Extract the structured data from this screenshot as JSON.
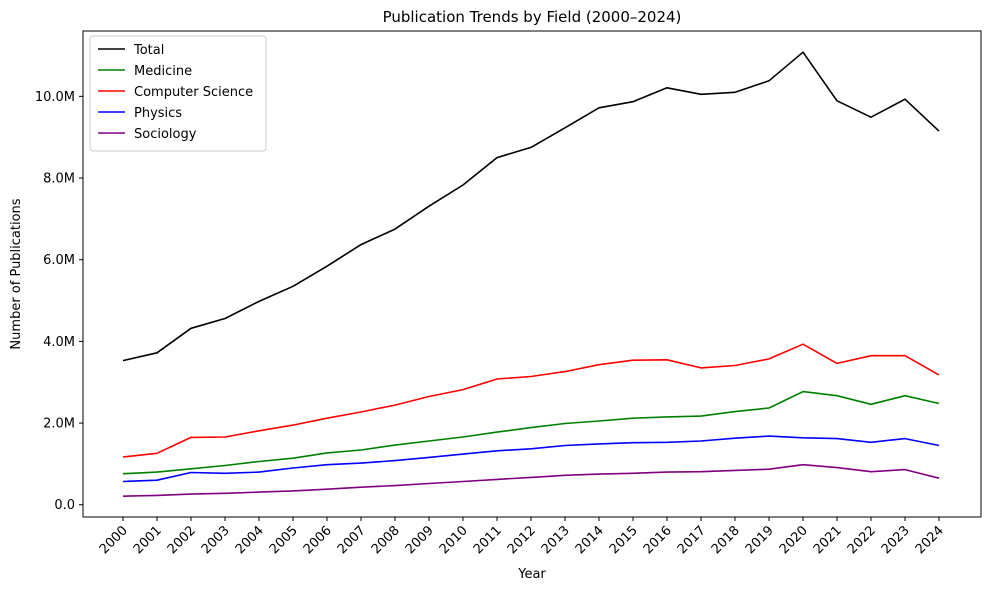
{
  "chart_data": {
    "type": "line",
    "title": "Publication Trends by Field (2000–2024)",
    "xlabel": "Year",
    "ylabel": "Number of Publications",
    "ylim": [
      -0.3,
      11.6
    ],
    "y_unit_note": "millions",
    "yticks": [
      {
        "value": 0,
        "label": "0.0"
      },
      {
        "value": 2,
        "label": "2.0M"
      },
      {
        "value": 4,
        "label": "4.0M"
      },
      {
        "value": 6,
        "label": "6.0M"
      },
      {
        "value": 8,
        "label": "8.0M"
      },
      {
        "value": 10,
        "label": "10.0M"
      }
    ],
    "x": [
      "2000",
      "2001",
      "2002",
      "2003",
      "2004",
      "2005",
      "2006",
      "2007",
      "2008",
      "2009",
      "2010",
      "2011",
      "2012",
      "2013",
      "2014",
      "2015",
      "2016",
      "2017",
      "2018",
      "2019",
      "2020",
      "2021",
      "2022",
      "2023",
      "2024"
    ],
    "grid": false,
    "legend_position": "top-left",
    "series": [
      {
        "name": "Total",
        "color": "#000000",
        "values": [
          3.53,
          3.72,
          4.32,
          4.56,
          4.98,
          5.35,
          5.84,
          6.37,
          6.75,
          7.31,
          7.83,
          8.5,
          8.75,
          9.23,
          9.72,
          9.87,
          10.21,
          10.05,
          10.1,
          10.38,
          11.08,
          9.89,
          9.49,
          9.93,
          9.15
        ]
      },
      {
        "name": "Medicine",
        "color": "#008000",
        "values": [
          0.76,
          0.8,
          0.88,
          0.96,
          1.06,
          1.14,
          1.27,
          1.34,
          1.46,
          1.56,
          1.66,
          1.78,
          1.89,
          1.99,
          2.05,
          2.12,
          2.15,
          2.17,
          2.28,
          2.37,
          2.77,
          2.67,
          2.46,
          2.67,
          2.48
        ]
      },
      {
        "name": "Computer Science",
        "color": "#ff0000",
        "values": [
          1.17,
          1.26,
          1.65,
          1.66,
          1.81,
          1.95,
          2.12,
          2.27,
          2.44,
          2.65,
          2.82,
          3.08,
          3.14,
          3.26,
          3.43,
          3.54,
          3.55,
          3.35,
          3.41,
          3.57,
          3.93,
          3.46,
          3.65,
          3.65,
          3.18
        ]
      },
      {
        "name": "Physics",
        "color": "#0000ff",
        "values": [
          0.57,
          0.6,
          0.79,
          0.77,
          0.8,
          0.9,
          0.98,
          1.02,
          1.08,
          1.16,
          1.24,
          1.32,
          1.37,
          1.45,
          1.49,
          1.52,
          1.53,
          1.56,
          1.63,
          1.68,
          1.64,
          1.62,
          1.53,
          1.62,
          1.45
        ]
      },
      {
        "name": "Sociology",
        "color": "#800080",
        "values": [
          0.21,
          0.23,
          0.26,
          0.28,
          0.31,
          0.34,
          0.38,
          0.43,
          0.47,
          0.52,
          0.57,
          0.62,
          0.67,
          0.72,
          0.75,
          0.77,
          0.8,
          0.81,
          0.84,
          0.87,
          0.98,
          0.91,
          0.81,
          0.86,
          0.65
        ]
      }
    ]
  }
}
